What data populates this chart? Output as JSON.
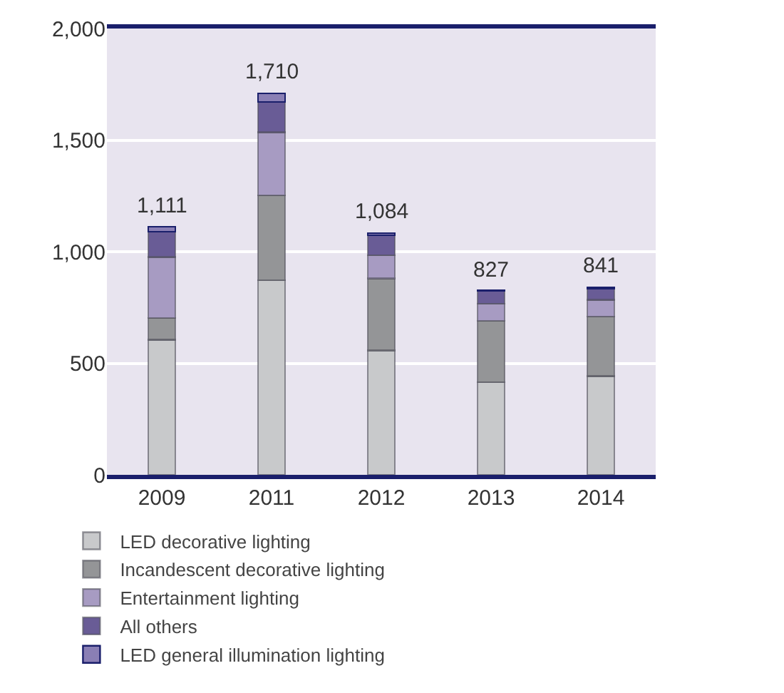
{
  "chart_data": {
    "type": "bar",
    "stacked": true,
    "categories": [
      "2009",
      "2011",
      "2012",
      "2013",
      "2014"
    ],
    "series": [
      {
        "name": "LED decorative lighting",
        "color": "#c8c9cb",
        "values": [
          606,
          873,
          557,
          416,
          443
        ]
      },
      {
        "name": "Incandescent decorative lighting",
        "color": "#949597",
        "values": [
          96,
          380,
          323,
          274,
          267
        ]
      },
      {
        "name": "Entertainment lighting",
        "color": "#a79bc2",
        "values": [
          274,
          282,
          104,
          77,
          74
        ]
      },
      {
        "name": "All others",
        "color": "#695c96",
        "values": [
          114,
          136,
          89,
          57,
          49
        ]
      },
      {
        "name": "LED general illumination lighting",
        "color": "#8a7fb5",
        "values": [
          21,
          39,
          11,
          3,
          8
        ]
      }
    ],
    "totals": [
      "1,111",
      "1,710",
      "1,084",
      "827",
      "841"
    ],
    "ylim": [
      0,
      2000
    ],
    "yticks": [
      0,
      {
        "value": 500,
        "label": "500"
      },
      {
        "value": 1000,
        "label": "1,000"
      },
      {
        "value": 1500,
        "label": "1,500"
      },
      {
        "value": 2000,
        "label": "2,000"
      }
    ],
    "grid": "y",
    "legend": "bottom"
  }
}
